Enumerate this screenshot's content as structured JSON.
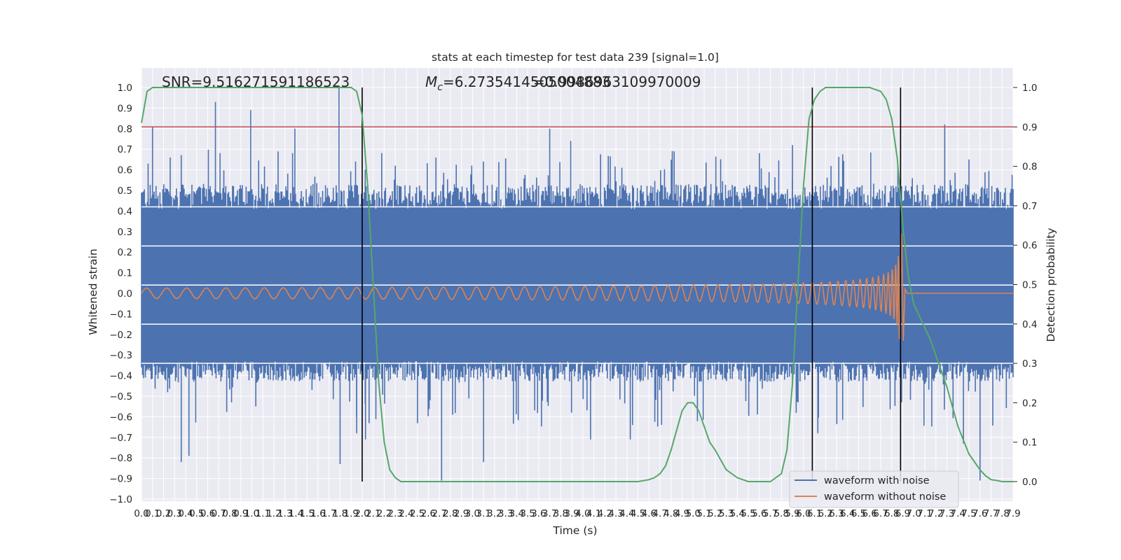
{
  "chart_data": {
    "type": "line",
    "title": "stats at each timestep for test data 239 [signal=1.0]",
    "xlabel": "Time (s)",
    "ylabel": "Whitened strain",
    "ylabel_right": "Detection probability",
    "xlim": [
      0.0,
      7.9
    ],
    "ylim": [
      -1.0,
      1.0
    ],
    "ylim_right": [
      -0.05,
      1.05
    ],
    "x_tick_labels": [
      "0.0",
      "0.1",
      "0.2",
      "0.3",
      "0.4",
      "0.5",
      "0.6",
      "0.7",
      "0.8",
      "0.9",
      "1.0",
      "1.1",
      "1.2",
      "1.3",
      "1.4",
      "1.5",
      "1.6",
      "1.7",
      "1.8",
      "1.9",
      "2.0",
      "2.1",
      "2.2",
      "2.3",
      "2.4",
      "2.5",
      "2.6",
      "2.7",
      "2.8",
      "2.9",
      "3.0",
      "3.1",
      "3.2",
      "3.3",
      "3.4",
      "3.5",
      "3.6",
      "3.7",
      "3.8",
      "3.9",
      "4.0",
      "4.1",
      "4.2",
      "4.3",
      "4.4",
      "4.5",
      "4.6",
      "4.7",
      "4.8",
      "4.9",
      "5.0",
      "5.1",
      "5.2",
      "5.3",
      "5.4",
      "5.5",
      "5.6",
      "5.7",
      "5.8",
      "5.9",
      "6.0",
      "6.1",
      "6.2",
      "6.3",
      "6.4",
      "6.5",
      "6.6",
      "6.7",
      "6.8",
      "6.9",
      "7.0",
      "7.1",
      "7.2",
      "7.3",
      "7.4",
      "7.5",
      "7.6",
      "7.7",
      "7.8",
      "7.9"
    ],
    "y_tick_labels": [
      "−1.0",
      "−0.9",
      "−0.8",
      "−0.7",
      "−0.6",
      "−0.5",
      "−0.4",
      "−0.3",
      "−0.2",
      "−0.1",
      "0.0",
      "0.1",
      "0.2",
      "0.3",
      "0.4",
      "0.5",
      "0.6",
      "0.7",
      "0.8",
      "0.9",
      "1.0"
    ],
    "y_tick_values": [
      -1.0,
      -0.9,
      -0.8,
      -0.7,
      -0.6,
      -0.5,
      -0.4,
      -0.3,
      -0.2,
      -0.1,
      0.0,
      0.1,
      0.2,
      0.3,
      0.4,
      0.5,
      0.6,
      0.7,
      0.8,
      0.9,
      1.0
    ],
    "y_right_tick_labels": [
      "0.0",
      "0.1",
      "0.2",
      "0.3",
      "0.4",
      "0.5",
      "0.6",
      "0.7",
      "0.8",
      "0.9",
      "1.0"
    ],
    "y_right_tick_values": [
      0.0,
      0.1,
      0.2,
      0.3,
      0.4,
      0.5,
      0.6,
      0.7,
      0.8,
      0.9,
      1.0
    ],
    "grid": true,
    "legend": {
      "position": "lower-right",
      "entries": [
        {
          "label": "waveform with noise",
          "color": "#4c72b0"
        },
        {
          "label": "waveform without noise",
          "color": "#dd8452"
        }
      ]
    },
    "annotations": {
      "snr": "SNR=9.516271591186523",
      "mc_symbol": "M",
      "mc_subscript": "c",
      "mc_value": "=6.2735414505004883",
      "overlap_value": "=0.9986963109970009"
    },
    "threshold": {
      "axis": "right",
      "value": 0.9,
      "color": "#c44e52"
    },
    "vertical_markers": [
      2.0,
      6.08,
      6.88
    ],
    "noise_series": {
      "name": "waveform with noise",
      "color": "#4c72b0",
      "band_low": -0.35,
      "band_high": 0.45,
      "peaks": [
        [
          0.06,
          0.63
        ],
        [
          0.1,
          0.81
        ],
        [
          0.26,
          0.66
        ],
        [
          0.67,
          0.93
        ],
        [
          0.99,
          0.89
        ],
        [
          1.39,
          0.8
        ],
        [
          1.79,
          1.0
        ],
        [
          2.3,
          0.62
        ],
        [
          3.7,
          0.8
        ],
        [
          3.89,
          0.74
        ],
        [
          5.9,
          0.72
        ],
        [
          7.28,
          0.82
        ],
        [
          7.5,
          0.65
        ]
      ],
      "troughs": [
        [
          0.36,
          -0.82
        ],
        [
          0.43,
          -0.79
        ],
        [
          1.8,
          -0.83
        ],
        [
          1.95,
          -0.68
        ],
        [
          2.03,
          -0.71
        ],
        [
          2.72,
          -0.91
        ],
        [
          2.82,
          -0.59
        ],
        [
          3.1,
          -0.82
        ],
        [
          4.07,
          -0.71
        ],
        [
          4.43,
          -0.71
        ],
        [
          6.13,
          -0.68
        ],
        [
          7.45,
          -0.73
        ],
        [
          7.6,
          -0.91
        ]
      ]
    },
    "clean_series": {
      "name": "waveform without noise",
      "color": "#dd8452",
      "merger_time": 6.88,
      "merger_peak": 0.29,
      "merger_trough": -0.23,
      "f0": 7.0,
      "a0": 0.025
    },
    "probability_series": {
      "name": "detection probability",
      "axis": "right",
      "color": "#55a868",
      "x": [
        0.0,
        0.05,
        0.1,
        0.2,
        0.5,
        1.0,
        1.5,
        1.9,
        1.95,
        2.0,
        2.05,
        2.1,
        2.15,
        2.2,
        2.25,
        2.3,
        2.35,
        2.4,
        2.5,
        3.0,
        3.5,
        4.0,
        4.5,
        4.6,
        4.65,
        4.7,
        4.75,
        4.8,
        4.85,
        4.9,
        4.95,
        5.0,
        5.05,
        5.1,
        5.15,
        5.2,
        5.3,
        5.4,
        5.5,
        5.6,
        5.7,
        5.8,
        5.85,
        5.9,
        5.95,
        6.0,
        6.05,
        6.1,
        6.15,
        6.2,
        6.25,
        6.3,
        6.4,
        6.5,
        6.6,
        6.7,
        6.75,
        6.8,
        6.85,
        6.9,
        6.95,
        7.0,
        7.05,
        7.1,
        7.15,
        7.2,
        7.3,
        7.4,
        7.5,
        7.6,
        7.65,
        7.7,
        7.75,
        7.8,
        7.9
      ],
      "y": [
        0.91,
        0.99,
        1.0,
        1.0,
        1.0,
        1.0,
        1.0,
        1.0,
        0.99,
        0.93,
        0.75,
        0.5,
        0.25,
        0.1,
        0.03,
        0.01,
        0.0,
        0.0,
        0.0,
        0.0,
        0.0,
        0.0,
        0.0,
        0.005,
        0.01,
        0.02,
        0.04,
        0.08,
        0.13,
        0.18,
        0.2,
        0.2,
        0.18,
        0.14,
        0.1,
        0.08,
        0.03,
        0.01,
        0.0,
        0.0,
        0.0,
        0.02,
        0.08,
        0.25,
        0.5,
        0.75,
        0.92,
        0.97,
        0.99,
        1.0,
        1.0,
        1.0,
        1.0,
        1.0,
        1.0,
        0.99,
        0.97,
        0.92,
        0.82,
        0.65,
        0.52,
        0.45,
        0.42,
        0.39,
        0.36,
        0.32,
        0.24,
        0.14,
        0.07,
        0.03,
        0.015,
        0.005,
        0.003,
        0.0,
        0.0
      ]
    }
  }
}
